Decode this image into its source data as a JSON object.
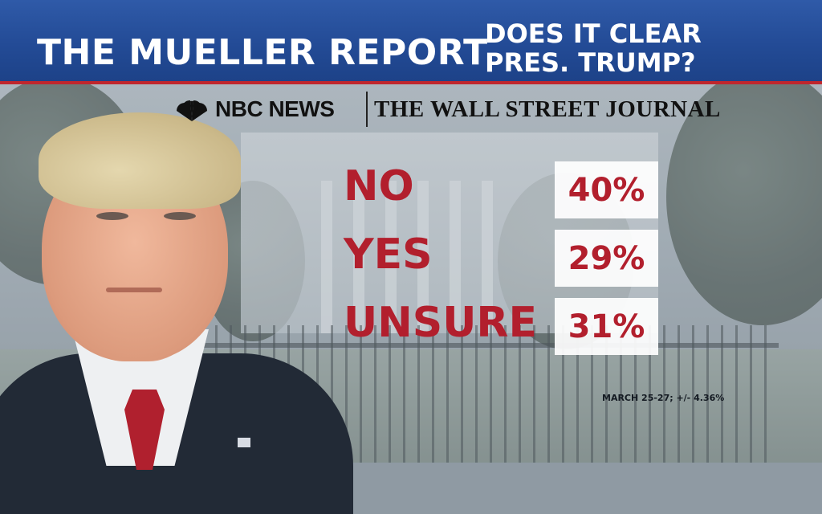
{
  "header": {
    "title": "THE MUELLER REPORT",
    "question_line1": "DOES IT CLEAR",
    "question_line2": "PRES. TRUMP?",
    "background_color": "#234b96",
    "accent_line_color": "#c0262d"
  },
  "logos": {
    "nbc_icon": "peacock-icon",
    "nbc_text": "NBC NEWS",
    "wsj_text": "THE WALL STREET JOURNAL"
  },
  "poll": {
    "results": [
      {
        "answer": "NO",
        "percent": "40%"
      },
      {
        "answer": "YES",
        "percent": "29%"
      },
      {
        "answer": "UNSURE",
        "percent": "31%"
      }
    ],
    "text_color": "#b21f2d"
  },
  "footnote": "MARCH 25-27; +/- 4.36%"
}
